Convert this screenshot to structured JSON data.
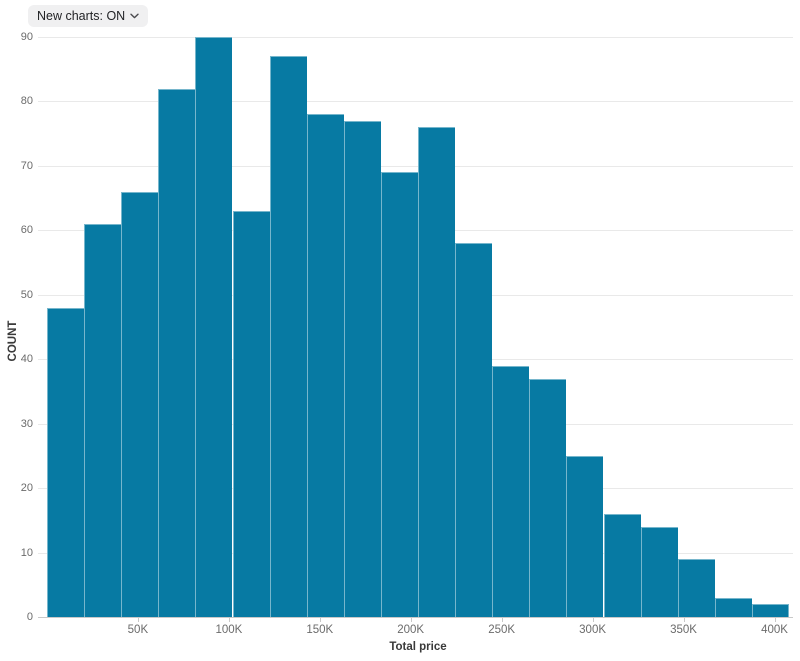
{
  "toolbar": {
    "new_charts_toggle": "New charts: ON"
  },
  "chart_data": {
    "type": "bar",
    "subtype": "histogram",
    "title": "",
    "xlabel": "Total price",
    "ylabel": "COUNT",
    "n_bins": 20,
    "values": [
      48,
      61,
      66,
      82,
      90,
      63,
      87,
      78,
      77,
      69,
      76,
      58,
      39,
      37,
      25,
      16,
      14,
      9,
      3,
      2
    ],
    "bin_width_estimate": 20000,
    "x_tick_labels": [
      "50K",
      "100K",
      "150K",
      "200K",
      "250K",
      "300K",
      "350K",
      "400K"
    ],
    "x_tick_values": [
      50000,
      100000,
      150000,
      200000,
      250000,
      300000,
      350000,
      400000
    ],
    "x_range_estimate": [
      0,
      408000
    ],
    "y_ticks": [
      0,
      10,
      20,
      30,
      40,
      50,
      60,
      70,
      80,
      90
    ],
    "ylim": [
      0,
      90
    ],
    "grid": true,
    "legend": false,
    "colors": {
      "bar_fill": "#077aa3",
      "bar_stroke": "rgba(255,255,255,0.45)",
      "gridline": "#e9e9e9",
      "axis_line": "#c9c9c9",
      "tick_text": "#6b6b6b",
      "axis_title_text": "#3a3a3a",
      "pill_bg": "#f0f0f1",
      "pill_text": "#222326"
    }
  }
}
